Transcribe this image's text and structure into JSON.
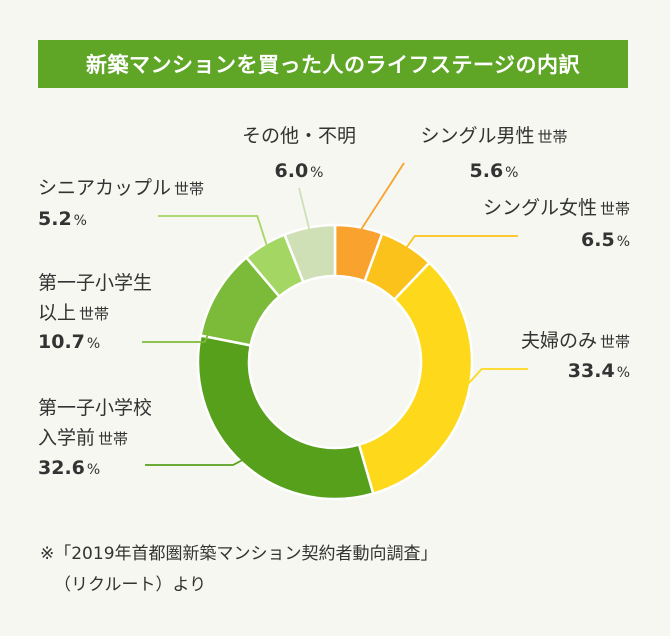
{
  "title": "新築マンションを買った人のライフステージの内訳",
  "chart_data": {
    "type": "pie",
    "donut": true,
    "unit": "%",
    "slices": [
      {
        "label_lines": [
          "シングル男性"
        ],
        "suffix": "世帯",
        "value": 5.6,
        "value_text": "5.6",
        "color": "#f9a22e"
      },
      {
        "label_lines": [
          "シングル女性"
        ],
        "suffix": "世帯",
        "value": 6.5,
        "value_text": "6.5",
        "color": "#fcc21c"
      },
      {
        "label_lines": [
          "夫婦のみ"
        ],
        "suffix": "世帯",
        "value": 33.4,
        "value_text": "33.4",
        "color": "#fed91b"
      },
      {
        "label_lines": [
          "第一子小学校",
          "入学前"
        ],
        "suffix": "世帯",
        "value": 32.6,
        "value_text": "32.6",
        "color": "#57a01c"
      },
      {
        "label_lines": [
          "第一子小学生",
          "以上"
        ],
        "suffix": "世帯",
        "value": 10.7,
        "value_text": "10.7",
        "color": "#7cba3a"
      },
      {
        "label_lines": [
          "シニアカップル"
        ],
        "suffix": "世帯",
        "value": 5.2,
        "value_text": "5.2",
        "color": "#a3d662"
      },
      {
        "label_lines": [
          "その他・不明"
        ],
        "suffix": "",
        "value": 6.0,
        "value_text": "6.0",
        "color": "#cfe0b6"
      }
    ]
  },
  "note": {
    "line1": "※「2019年首都圏新築マンション契約者動向調査」",
    "line2": "（リクルート）より"
  }
}
